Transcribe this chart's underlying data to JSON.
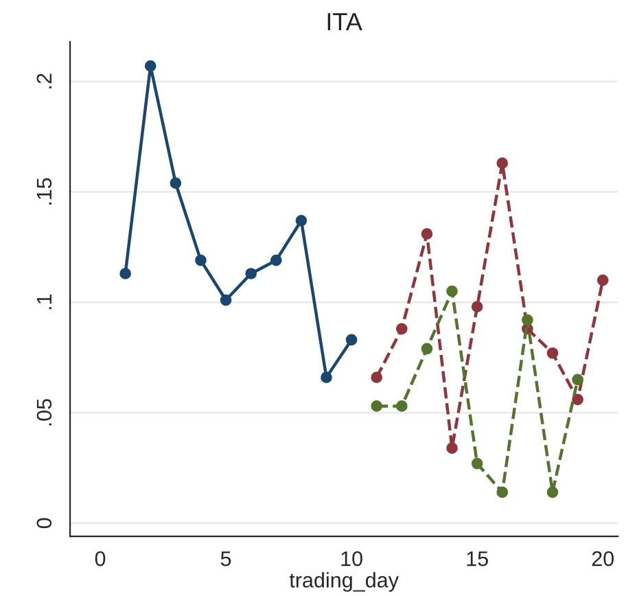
{
  "chart_data": {
    "type": "line",
    "title": "ITA",
    "xlabel": "trading_day",
    "x": [
      1,
      2,
      3,
      4,
      5,
      6,
      7,
      8,
      9,
      10
    ],
    "series": [
      {
        "color": "#1a476f",
        "line_style": "solid",
        "values": [
          0.113,
          0.207,
          0.154,
          0.119,
          0.101,
          0.113,
          0.119,
          0.137,
          0.066,
          0.083
        ]
      },
      {
        "color": "#90353b",
        "line_style": "dashed",
        "x": [
          11,
          12,
          13,
          14,
          15,
          16,
          17,
          18,
          19,
          20
        ],
        "values": [
          0.066,
          0.088,
          0.131,
          0.034,
          0.098,
          0.163,
          0.088,
          0.077,
          0.056,
          0.11
        ]
      },
      {
        "color": "#55752f",
        "line_style": "dashed",
        "x": [
          11,
          12,
          13,
          14,
          15,
          16,
          17,
          18,
          19
        ],
        "values": [
          0.053,
          0.053,
          0.079,
          0.105,
          0.027,
          0.014,
          0.092,
          0.014,
          0.065
        ]
      }
    ],
    "xlim": [
      -1.2,
      20.6
    ],
    "xticks": [
      0,
      5,
      10,
      15,
      20
    ],
    "ylim": [
      -0.006,
      0.218
    ],
    "yticks": [
      0,
      {
        "value": 0.05,
        "label": ".05"
      },
      {
        "value": 0.1,
        "label": ".1"
      },
      {
        "value": 0.15,
        "label": ".15"
      },
      {
        "value": 0.2,
        "label": ".2"
      }
    ],
    "grid": "y",
    "marker": "circle"
  }
}
